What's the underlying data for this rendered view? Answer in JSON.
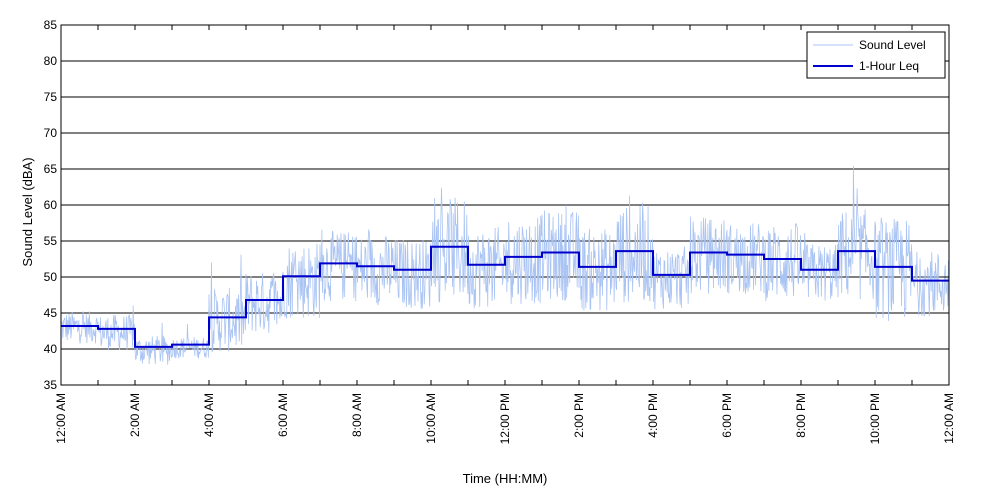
{
  "chart_data": {
    "type": "line",
    "title": "",
    "xlabel": "Time (HH:MM)",
    "ylabel": "Sound Level (dBA)",
    "xlim": [
      0,
      24
    ],
    "ylim": [
      35,
      85
    ],
    "y_ticks": [
      35,
      40,
      45,
      50,
      55,
      60,
      65,
      70,
      75,
      80,
      85
    ],
    "x_ticks": [
      0,
      2,
      4,
      6,
      8,
      10,
      12,
      14,
      16,
      18,
      20,
      22,
      24
    ],
    "x_tick_labels": [
      "12:00 AM",
      "2:00 AM",
      "4:00 AM",
      "6:00 AM",
      "8:00 AM",
      "10:00 AM",
      "12:00 PM",
      "2:00 PM",
      "4:00 PM",
      "6:00 PM",
      "8:00 PM",
      "10:00 PM",
      "12:00 AM"
    ],
    "grid": "horizontal",
    "legend_position": "top-right",
    "colors": {
      "sound_level": "#a9c3f3",
      "leq": "#0000cc"
    },
    "series": [
      {
        "name": "Sound Level",
        "style": "thin-line",
        "hour_mean_values": [
          43.0,
          42.3,
          39.8,
          40.2,
          44.0,
          46.4,
          49.6,
          51.5,
          51.0,
          50.5,
          53.7,
          51.3,
          52.4,
          53.0,
          51.0,
          53.1,
          49.9,
          53.0,
          52.6,
          52.1,
          50.6,
          53.1,
          51.0,
          49.1
        ],
        "hour_peak_values": [
          47.0,
          48.0,
          45.5,
          46.0,
          53.5,
          54.0,
          57.0,
          58.0,
          57.0,
          57.5,
          63.0,
          57.0,
          59.0,
          61.0,
          57.5,
          64.5,
          56.0,
          59.5,
          58.5,
          57.5,
          57.0,
          66.0,
          62.5,
          55.0
        ],
        "hour_min_values": [
          40.5,
          39.5,
          37.5,
          38.5,
          39.0,
          41.5,
          43.5,
          46.0,
          45.5,
          45.0,
          45.5,
          45.0,
          45.5,
          46.0,
          44.5,
          45.5,
          45.0,
          47.0,
          47.0,
          46.0,
          46.0,
          46.0,
          43.0,
          44.0
        ]
      },
      {
        "name": "1-Hour Leq",
        "style": "step",
        "x": [
          0,
          1,
          2,
          3,
          4,
          5,
          6,
          7,
          8,
          9,
          10,
          11,
          12,
          13,
          14,
          15,
          16,
          17,
          18,
          19,
          20,
          21,
          22,
          23
        ],
        "values": [
          43.2,
          42.8,
          40.3,
          40.6,
          44.4,
          46.8,
          50.1,
          51.9,
          51.5,
          51.0,
          54.2,
          51.7,
          52.8,
          53.4,
          51.4,
          53.6,
          50.3,
          53.4,
          53.1,
          52.5,
          51.0,
          53.6,
          51.4,
          49.5
        ]
      }
    ]
  }
}
